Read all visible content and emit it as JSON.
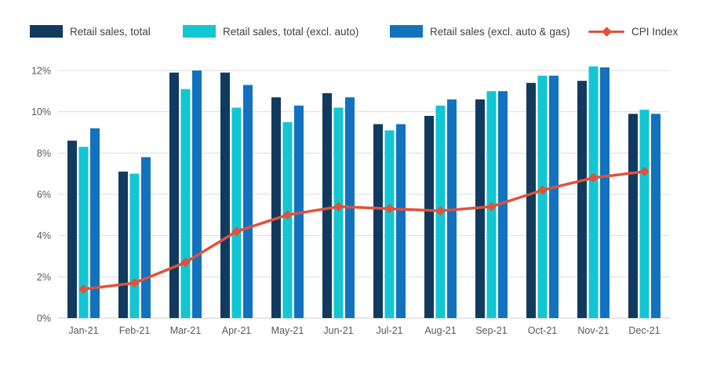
{
  "chart_data": {
    "type": "bar+line",
    "title": "",
    "xlabel": "",
    "ylabel": "",
    "categories": [
      "Jan-21",
      "Feb-21",
      "Mar-21",
      "Apr-21",
      "May-21",
      "Jun-21",
      "Jul-21",
      "Aug-21",
      "Sep-21",
      "Oct-21",
      "Nov-21",
      "Dec-21"
    ],
    "series": [
      {
        "name": "Retail sales, total",
        "type": "bar",
        "color": "#123A5E",
        "values": [
          8.6,
          7.1,
          11.9,
          11.9,
          10.7,
          10.9,
          9.4,
          9.8,
          10.6,
          11.4,
          11.5,
          9.9
        ]
      },
      {
        "name": "Retail sales, total (excl. auto)",
        "type": "bar",
        "color": "#12C6D4",
        "values": [
          8.3,
          7.0,
          11.1,
          10.2,
          9.5,
          10.2,
          9.1,
          10.3,
          11.0,
          11.75,
          12.2,
          10.1
        ]
      },
      {
        "name": "Retail sales (excl. auto & gas)",
        "type": "bar",
        "color": "#1272BE",
        "values": [
          9.2,
          7.8,
          12.0,
          11.3,
          10.3,
          10.7,
          9.4,
          10.6,
          11.0,
          11.75,
          12.15,
          9.9
        ]
      },
      {
        "name": "CPI Index",
        "type": "line",
        "marker": "diamond",
        "color": "#E0523A",
        "values": [
          1.4,
          1.7,
          2.7,
          4.2,
          5.0,
          5.4,
          5.3,
          5.2,
          5.4,
          6.2,
          6.8,
          7.1
        ]
      }
    ],
    "ylim": [
      0,
      12
    ],
    "ytick_values": [
      0,
      2,
      4,
      6,
      8,
      10,
      12
    ],
    "ytick_labels": [
      "0%",
      "2%",
      "4%",
      "6%",
      "8%",
      "10%",
      "12%"
    ],
    "grid": true,
    "legend_position": "top",
    "axis_text_color": "#595959",
    "grid_color": "#DBDBDB",
    "baseline_color": "#CFCFCF"
  }
}
